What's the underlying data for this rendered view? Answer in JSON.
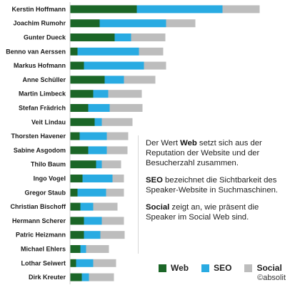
{
  "chart_data": {
    "type": "bar",
    "orientation": "horizontal",
    "stacked": true,
    "categories": [
      "Kerstin Hoffmann",
      "Joachim Rumohr",
      "Gunter Dueck",
      "Benno van Aerssen",
      "Markus Hofmann",
      "Anne Schüller",
      "Martin Limbeck",
      "Stefan Frädrich",
      "Veit Lindau",
      "Thorsten Havener",
      "Sabine Asgodom",
      "Thilo Baum",
      "Ingo Vogel",
      "Gregor Staub",
      "Christian Bischoff",
      "Hermann Scherer",
      "Patric Heizmann",
      "Michael Ehlers",
      "Lothar Seiwert",
      "Dirk Kreuter"
    ],
    "series": [
      {
        "name": "Web",
        "values": [
          93,
          41,
          62,
          10,
          19,
          48,
          32,
          25,
          34,
          13,
          25,
          36,
          17,
          10,
          14,
          19,
          19,
          14,
          8,
          16
        ]
      },
      {
        "name": "SEO",
        "values": [
          120,
          93,
          23,
          86,
          84,
          27,
          21,
          30,
          10,
          38,
          26,
          8,
          42,
          40,
          18,
          25,
          23,
          8,
          24,
          10
        ]
      },
      {
        "name": "Social",
        "values": [
          52,
          41,
          48,
          34,
          31,
          44,
          47,
          46,
          43,
          30,
          29,
          27,
          16,
          25,
          34,
          31,
          34,
          32,
          32,
          35
        ]
      }
    ],
    "legend_position": "bottom-right",
    "grid": false,
    "axes_visible": false
  },
  "colors": {
    "Web": "#1b6627",
    "SEO": "#29abe2",
    "Social": "#bdbdbd"
  },
  "info": {
    "p1_pre": "Der Wert ",
    "p1_bold": "Web",
    "p1_post": " setzt sich aus der Reputation der Website und der Besucherzahl zusammen.",
    "p2_bold": "SEO",
    "p2_post": " bezeichnet die Sichtbarkeit des Speaker-Website in Suchmaschinen.",
    "p3_bold": "Social",
    "p3_post": " zeigt an, wie präsent die Speaker im Social Web sind."
  },
  "legend": {
    "web": "Web",
    "seo": "SEO",
    "social": "Social"
  },
  "copyright": "©absolit"
}
